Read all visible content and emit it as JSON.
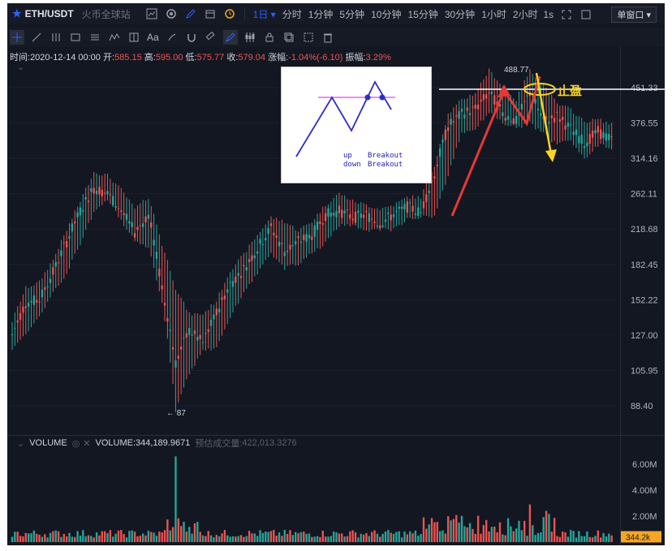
{
  "header": {
    "symbol": "ETH/USDT",
    "exchange": "火币全球站",
    "intervals": [
      "1日",
      "分时",
      "1分钟",
      "5分钟",
      "10分钟",
      "15分钟",
      "30分钟",
      "1小时",
      "2小时"
    ],
    "active_interval": "1日",
    "refresh": "1s",
    "window_button": "单窗口"
  },
  "toolbar": {
    "text_tool": "Aa"
  },
  "info": {
    "time_label": "时间:",
    "time": "2020-12-14 00:00",
    "open_label": "开:",
    "open": "585.15",
    "high_label": "高:",
    "high": "595.00",
    "low_label": "低:",
    "low": "575.77",
    "close_label": "收:",
    "close": "579.04",
    "change_label": "涨幅:",
    "change": "-1.04%(-6.10)",
    "amplitude_label": "振幅:",
    "amplitude": "3.29%"
  },
  "volume_panel": {
    "title": "VOLUME",
    "volume_label": "VOLUME:",
    "volume": "344,189.9671",
    "estimate_label": "预估成交量:",
    "estimate": "422,013.3276"
  },
  "annotations": {
    "take_profit": "止盈",
    "peak_label": "488.77",
    "low_label": "← 87"
  },
  "inset": {
    "line1_left": "up",
    "line1_right": "Breakout",
    "line2_left": "down",
    "line2_right": "Breakout"
  },
  "colors": {
    "up": "#26a69a",
    "down": "#ef5350",
    "background": "#131722",
    "accent": "#2962ff",
    "arrow_red": "#e53935",
    "arrow_yellow": "#f9d423",
    "resistance_line": "#ffffff"
  },
  "chart_data": {
    "type": "candlestick",
    "y_ticks": [
      "451.33",
      "376.55",
      "314.16",
      "262.11",
      "218.68",
      "182.45",
      "152.22",
      "127.00",
      "105.95",
      "88.40"
    ],
    "y_scale": "log",
    "price_series": [
      {
        "low": 118,
        "high": 135,
        "close": 127
      },
      {
        "low": 130,
        "high": 160,
        "close": 150
      },
      {
        "low": 140,
        "high": 165,
        "close": 152
      },
      {
        "low": 160,
        "high": 185,
        "close": 175
      },
      {
        "low": 175,
        "high": 215,
        "close": 205
      },
      {
        "low": 205,
        "high": 250,
        "close": 240
      },
      {
        "low": 240,
        "high": 290,
        "close": 270
      },
      {
        "low": 255,
        "high": 285,
        "close": 262
      },
      {
        "low": 230,
        "high": 265,
        "close": 240
      },
      {
        "low": 210,
        "high": 240,
        "close": 215
      },
      {
        "low": 200,
        "high": 255,
        "close": 235
      },
      {
        "low": 150,
        "high": 200,
        "close": 160
      },
      {
        "low": 87,
        "high": 160,
        "close": 110
      },
      {
        "low": 105,
        "high": 140,
        "close": 130
      },
      {
        "low": 118,
        "high": 140,
        "close": 122
      },
      {
        "low": 120,
        "high": 150,
        "close": 142
      },
      {
        "low": 140,
        "high": 175,
        "close": 165
      },
      {
        "low": 160,
        "high": 190,
        "close": 178
      },
      {
        "low": 175,
        "high": 210,
        "close": 198
      },
      {
        "low": 195,
        "high": 230,
        "close": 220
      },
      {
        "low": 180,
        "high": 225,
        "close": 195
      },
      {
        "low": 185,
        "high": 215,
        "close": 205
      },
      {
        "low": 195,
        "high": 225,
        "close": 212
      },
      {
        "low": 205,
        "high": 245,
        "close": 235
      },
      {
        "low": 225,
        "high": 260,
        "close": 240
      },
      {
        "low": 225,
        "high": 250,
        "close": 232
      },
      {
        "low": 220,
        "high": 245,
        "close": 235
      },
      {
        "low": 220,
        "high": 240,
        "close": 225
      },
      {
        "low": 220,
        "high": 245,
        "close": 236
      },
      {
        "low": 232,
        "high": 255,
        "close": 245
      },
      {
        "low": 235,
        "high": 255,
        "close": 238
      },
      {
        "low": 235,
        "high": 300,
        "close": 290
      },
      {
        "low": 290,
        "high": 390,
        "close": 370
      },
      {
        "low": 360,
        "high": 420,
        "close": 395
      },
      {
        "low": 370,
        "high": 435,
        "close": 405
      },
      {
        "low": 400,
        "high": 488.77,
        "close": 440
      },
      {
        "low": 380,
        "high": 450,
        "close": 395
      },
      {
        "low": 370,
        "high": 420,
        "close": 380
      },
      {
        "low": 380,
        "high": 488,
        "close": 440
      },
      {
        "low": 360,
        "high": 455,
        "close": 380
      },
      {
        "low": 340,
        "high": 410,
        "close": 390
      },
      {
        "low": 350,
        "high": 400,
        "close": 365
      },
      {
        "low": 315,
        "high": 375,
        "close": 340
      },
      {
        "low": 340,
        "high": 380,
        "close": 360
      },
      {
        "low": 335,
        "high": 370,
        "close": 345
      }
    ],
    "volume_ticks": [
      "6.00M",
      "4.00M",
      "2.00M"
    ],
    "volume_last": "344.2k"
  }
}
